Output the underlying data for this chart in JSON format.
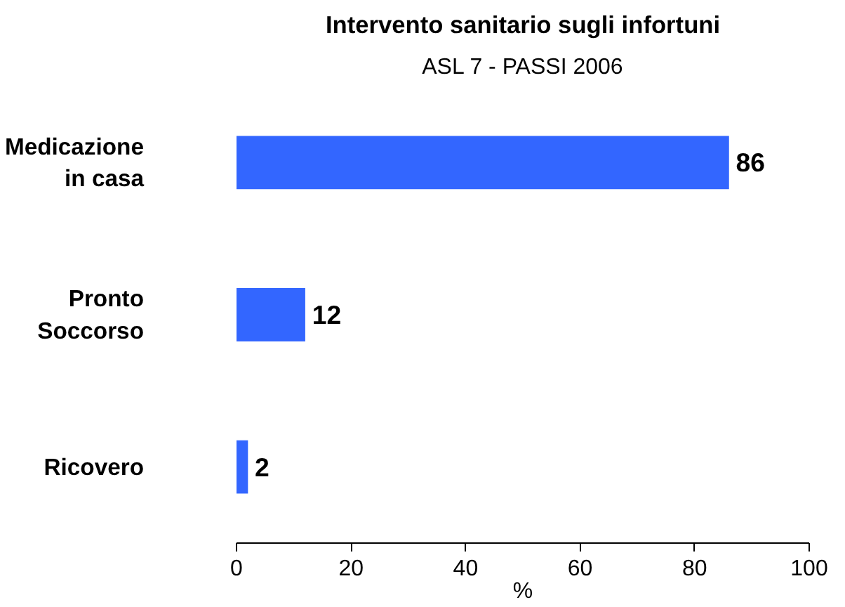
{
  "chart_data": {
    "type": "bar",
    "orientation": "horizontal",
    "title": "Intervento sanitario sugli infortuni",
    "subtitle": "ASL 7 - PASSI 2006",
    "xlabel": "%",
    "categories": [
      "Medicazione\nin casa",
      "Pronto\nSoccorso",
      "Ricovero"
    ],
    "values": [
      86,
      12,
      2
    ],
    "color": "#3366ff",
    "xlim": [
      0,
      100
    ],
    "xticks": [
      0,
      20,
      40,
      60,
      80,
      100
    ],
    "data_labels": true
  }
}
